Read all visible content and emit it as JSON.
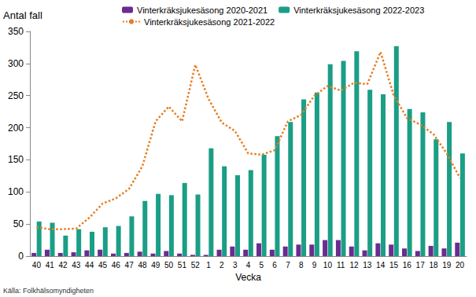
{
  "chart_data": {
    "type": "bar",
    "y_label": "Antal fall",
    "x_label": "Vecka",
    "source": "Källa: Folkhälsomyndigheten",
    "categories": [
      "40",
      "41",
      "42",
      "43",
      "44",
      "45",
      "46",
      "47",
      "48",
      "49",
      "50",
      "51",
      "52",
      "1",
      "2",
      "3",
      "4",
      "5",
      "6",
      "7",
      "8",
      "9",
      "10",
      "11",
      "12",
      "13",
      "14",
      "15",
      "16",
      "17",
      "18",
      "19",
      "20"
    ],
    "series": [
      {
        "name": "Vinterkräksjukesäsong 2020-2021",
        "type": "bar",
        "color": "#6a2c8e",
        "values": [
          5,
          10,
          5,
          6,
          9,
          10,
          4,
          5,
          7,
          4,
          8,
          4,
          2,
          2,
          10,
          15,
          10,
          20,
          10,
          15,
          18,
          18,
          25,
          25,
          15,
          9,
          20,
          18,
          12,
          8,
          16,
          12,
          21
        ]
      },
      {
        "name": "Vinterkräksjukesäsong 2022-2023",
        "type": "bar",
        "color": "#1b9e86",
        "values": [
          54,
          52,
          32,
          42,
          38,
          45,
          47,
          62,
          86,
          97,
          95,
          114,
          96,
          168,
          140,
          126,
          134,
          158,
          187,
          209,
          244,
          255,
          299,
          304,
          319,
          259,
          252,
          327,
          229,
          224,
          182,
          209,
          160
        ]
      },
      {
        "name": "Vinterkräksjukesäsong 2021-2022",
        "type": "line",
        "color": "#e67e22",
        "line_style": "dotted",
        "values": [
          45,
          42,
          42,
          43,
          60,
          82,
          90,
          105,
          140,
          210,
          233,
          210,
          298,
          245,
          208,
          195,
          160,
          158,
          165,
          210,
          220,
          250,
          265,
          258,
          270,
          268,
          318,
          250,
          215,
          205,
          190,
          160,
          122
        ]
      }
    ],
    "ylim": [
      0,
      350
    ],
    "yticks": [
      0,
      50,
      100,
      150,
      200,
      250,
      300,
      350
    ],
    "grid": false,
    "legend": "top"
  }
}
